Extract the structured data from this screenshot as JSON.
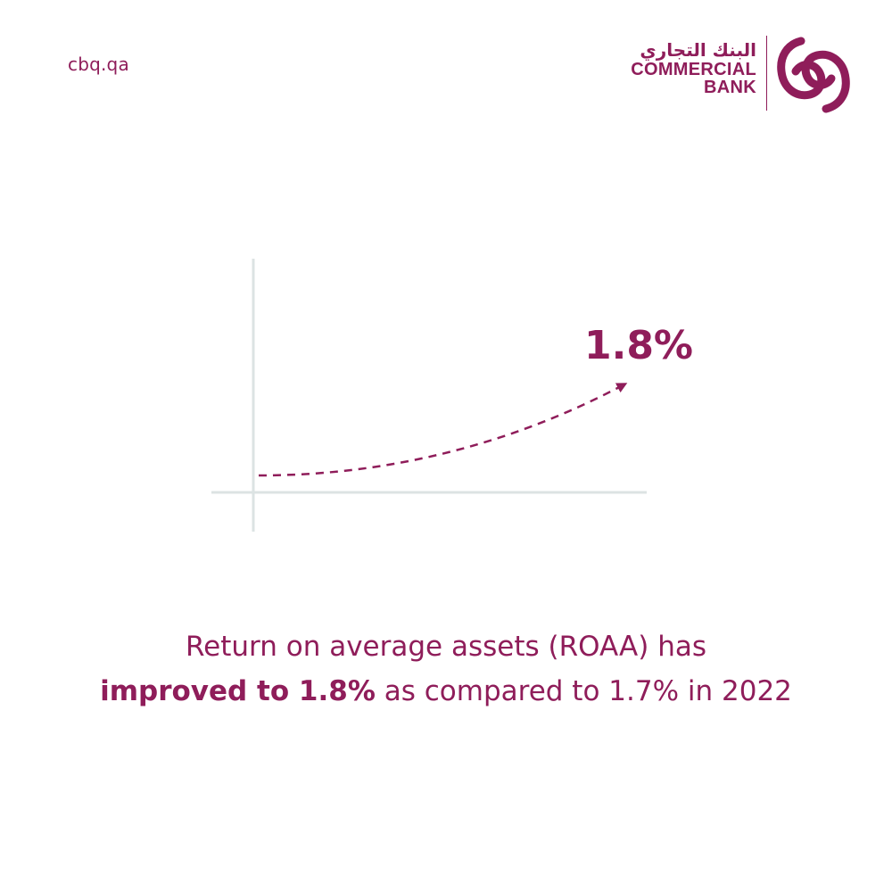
{
  "site": {
    "url": "cbq.qa"
  },
  "logo": {
    "arabic": "البنك التجاري",
    "line1": "COMMERCIAL",
    "line2": "BANK",
    "icon": "commercial-bank-mark-icon"
  },
  "graphic": {
    "value_label": "1.8%",
    "accent": "#8f1d5a",
    "axis_color": "#dce3e3",
    "trend_start": 1.7,
    "trend_end": 1.8
  },
  "caption": {
    "line1": "Return on average assets (ROAA) has",
    "line2_bold": "improved to 1.8%",
    "line2_rest": " as compared to 1.7% in 2022"
  }
}
